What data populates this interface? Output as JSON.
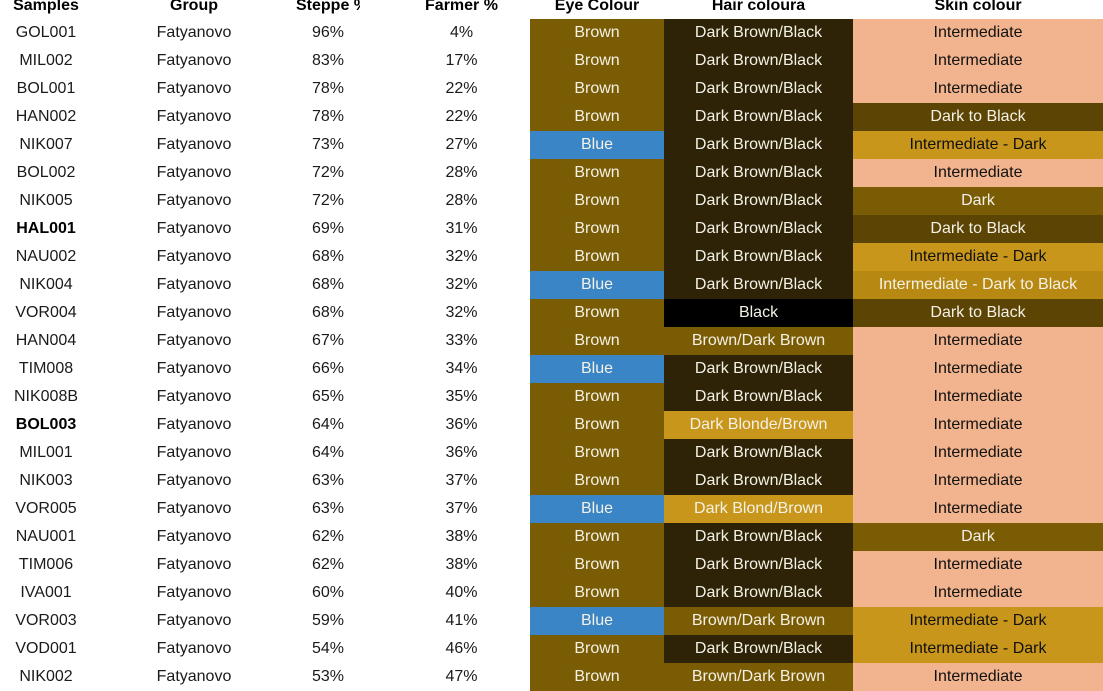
{
  "headers": {
    "samples": "Samples",
    "group": "Group",
    "steppe": "Steppe %",
    "farmer": "Farmer %",
    "eye": "Eye Colour",
    "hair": "Hair coloura",
    "skin": "Skin colour"
  },
  "colors": {
    "Brown": "#7a5c05",
    "Blue": "#3a85c6",
    "Dark Brown/Black": "#2e2306",
    "Black": "#000000",
    "Brown/Dark Brown": "#7a5c05",
    "Dark Blonde/Brown": "#c8961a",
    "Dark Blond/Brown": "#c8961a",
    "Intermediate": "#f2b48e",
    "Dark to Black": "#5c4405",
    "Intermediate - Dark": "#c8961a",
    "Dark": "#7a5c05",
    "Intermediate - Dark to Black": "#b88912"
  },
  "rows": [
    {
      "sample": "GOL001",
      "bold": false,
      "group": "Fatyanovo",
      "steppe": "96%",
      "farmer": "4%",
      "eye": "Brown",
      "hair": "Dark Brown/Black",
      "skin": "Intermediate"
    },
    {
      "sample": "MIL002",
      "bold": false,
      "group": "Fatyanovo",
      "steppe": "83%",
      "farmer": "17%",
      "eye": "Brown",
      "hair": "Dark Brown/Black",
      "skin": "Intermediate"
    },
    {
      "sample": "BOL001",
      "bold": false,
      "group": "Fatyanovo",
      "steppe": "78%",
      "farmer": "22%",
      "eye": "Brown",
      "hair": "Dark Brown/Black",
      "skin": "Intermediate"
    },
    {
      "sample": "HAN002",
      "bold": false,
      "group": "Fatyanovo",
      "steppe": "78%",
      "farmer": "22%",
      "eye": "Brown",
      "hair": "Dark Brown/Black",
      "skin": "Dark to Black"
    },
    {
      "sample": "NIK007",
      "bold": false,
      "group": "Fatyanovo",
      "steppe": "73%",
      "farmer": "27%",
      "eye": "Blue",
      "hair": "Dark Brown/Black",
      "skin": "Intermediate - Dark"
    },
    {
      "sample": "BOL002",
      "bold": false,
      "group": "Fatyanovo",
      "steppe": "72%",
      "farmer": "28%",
      "eye": "Brown",
      "hair": "Dark Brown/Black",
      "skin": "Intermediate"
    },
    {
      "sample": "NIK005",
      "bold": false,
      "group": "Fatyanovo",
      "steppe": "72%",
      "farmer": "28%",
      "eye": "Brown",
      "hair": "Dark Brown/Black",
      "skin": "Dark"
    },
    {
      "sample": "HAL001",
      "bold": true,
      "group": "Fatyanovo",
      "steppe": "69%",
      "farmer": "31%",
      "eye": "Brown",
      "hair": "Dark Brown/Black",
      "skin": "Dark to Black"
    },
    {
      "sample": "NAU002",
      "bold": false,
      "group": "Fatyanovo",
      "steppe": "68%",
      "farmer": "32%",
      "eye": "Brown",
      "hair": "Dark Brown/Black",
      "skin": "Intermediate - Dark"
    },
    {
      "sample": "NIK004",
      "bold": false,
      "group": "Fatyanovo",
      "steppe": "68%",
      "farmer": "32%",
      "eye": "Blue",
      "hair": "Dark Brown/Black",
      "skin": "Intermediate - Dark to Black"
    },
    {
      "sample": "VOR004",
      "bold": false,
      "group": "Fatyanovo",
      "steppe": "68%",
      "farmer": "32%",
      "eye": "Brown",
      "hair": "Black",
      "skin": "Dark to Black"
    },
    {
      "sample": "HAN004",
      "bold": false,
      "group": "Fatyanovo",
      "steppe": "67%",
      "farmer": "33%",
      "eye": "Brown",
      "hair": "Brown/Dark Brown",
      "skin": "Intermediate"
    },
    {
      "sample": "TIM008",
      "bold": false,
      "group": "Fatyanovo",
      "steppe": "66%",
      "farmer": "34%",
      "eye": "Blue",
      "hair": "Dark Brown/Black",
      "skin": "Intermediate"
    },
    {
      "sample": "NIK008B",
      "bold": false,
      "group": "Fatyanovo",
      "steppe": "65%",
      "farmer": "35%",
      "eye": "Brown",
      "hair": "Dark Brown/Black",
      "skin": "Intermediate"
    },
    {
      "sample": "BOL003",
      "bold": true,
      "group": "Fatyanovo",
      "steppe": "64%",
      "farmer": "36%",
      "eye": "Brown",
      "hair": "Dark Blonde/Brown",
      "skin": "Intermediate"
    },
    {
      "sample": "MIL001",
      "bold": false,
      "group": "Fatyanovo",
      "steppe": "64%",
      "farmer": "36%",
      "eye": "Brown",
      "hair": "Dark Brown/Black",
      "skin": "Intermediate"
    },
    {
      "sample": "NIK003",
      "bold": false,
      "group": "Fatyanovo",
      "steppe": "63%",
      "farmer": "37%",
      "eye": "Brown",
      "hair": "Dark Brown/Black",
      "skin": "Intermediate"
    },
    {
      "sample": "VOR005",
      "bold": false,
      "group": "Fatyanovo",
      "steppe": "63%",
      "farmer": "37%",
      "eye": "Blue",
      "hair": "Dark Blond/Brown",
      "skin": "Intermediate"
    },
    {
      "sample": "NAU001",
      "bold": false,
      "group": "Fatyanovo",
      "steppe": "62%",
      "farmer": "38%",
      "eye": "Brown",
      "hair": "Dark Brown/Black",
      "skin": "Dark"
    },
    {
      "sample": "TIM006",
      "bold": false,
      "group": "Fatyanovo",
      "steppe": "62%",
      "farmer": "38%",
      "eye": "Brown",
      "hair": "Dark Brown/Black",
      "skin": "Intermediate"
    },
    {
      "sample": "IVA001",
      "bold": false,
      "group": "Fatyanovo",
      "steppe": "60%",
      "farmer": "40%",
      "eye": "Brown",
      "hair": "Dark Brown/Black",
      "skin": "Intermediate"
    },
    {
      "sample": "VOR003",
      "bold": false,
      "group": "Fatyanovo",
      "steppe": "59%",
      "farmer": "41%",
      "eye": "Blue",
      "hair": "Brown/Dark Brown",
      "skin": "Intermediate - Dark"
    },
    {
      "sample": "VOD001",
      "bold": false,
      "group": "Fatyanovo",
      "steppe": "54%",
      "farmer": "46%",
      "eye": "Brown",
      "hair": "Dark Brown/Black",
      "skin": "Intermediate - Dark"
    },
    {
      "sample": "NIK002",
      "bold": false,
      "group": "Fatyanovo",
      "steppe": "53%",
      "farmer": "47%",
      "eye": "Brown",
      "hair": "Brown/Dark Brown",
      "skin": "Intermediate"
    }
  ]
}
